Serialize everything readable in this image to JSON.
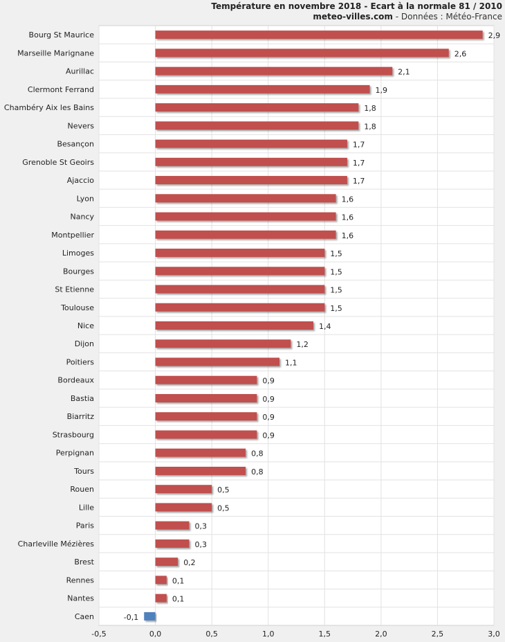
{
  "header": {
    "title": "Température en novembre 2018 - Ecart à la normale 81 / 2010",
    "site": "meteo-villes.com",
    "source": " - Données : Météo-France"
  },
  "chart_data": {
    "type": "bar",
    "orientation": "horizontal",
    "categories": [
      "Bourg St Maurice",
      "Marseille Marignane",
      "Aurillac",
      "Clermont Ferrand",
      "Chambéry Aix les Bains",
      "Nevers",
      "Besançon",
      "Grenoble St Geoirs",
      "Ajaccio",
      "Lyon",
      "Nancy",
      "Montpellier",
      "Limoges",
      "Bourges",
      "St Etienne",
      "Toulouse",
      "Nice",
      "Dijon",
      "Poitiers",
      "Bordeaux",
      "Bastia",
      "Biarritz",
      "Strasbourg",
      "Perpignan",
      "Tours",
      "Rouen",
      "Lille",
      "Paris",
      "Charleville Mézières",
      "Brest",
      "Rennes",
      "Nantes",
      "Caen"
    ],
    "values": [
      2.9,
      2.6,
      2.1,
      1.9,
      1.8,
      1.8,
      1.7,
      1.7,
      1.7,
      1.6,
      1.6,
      1.6,
      1.5,
      1.5,
      1.5,
      1.5,
      1.4,
      1.2,
      1.1,
      0.9,
      0.9,
      0.9,
      0.9,
      0.8,
      0.8,
      0.5,
      0.5,
      0.3,
      0.3,
      0.2,
      0.1,
      0.1,
      -0.1
    ],
    "value_labels": [
      "2,9",
      "2,6",
      "2,1",
      "1,9",
      "1,8",
      "1,8",
      "1,7",
      "1,7",
      "1,7",
      "1,6",
      "1,6",
      "1,6",
      "1,5",
      "1,5",
      "1,5",
      "1,5",
      "1,4",
      "1,2",
      "1,1",
      "0,9",
      "0,9",
      "0,9",
      "0,9",
      "0,8",
      "0,8",
      "0,5",
      "0,5",
      "0,3",
      "0,3",
      "0,2",
      "0,1",
      "0,1",
      "-0,1"
    ],
    "xlim": [
      -0.5,
      3.0
    ],
    "xticks": [
      -0.5,
      0.0,
      0.5,
      1.0,
      1.5,
      2.0,
      2.5,
      3.0
    ],
    "xtick_labels": [
      "-0,5",
      "0,0",
      "0,5",
      "1,0",
      "1,5",
      "2,0",
      "2,5",
      "3,0"
    ],
    "grid": true,
    "colors": {
      "positive": "#c0504d",
      "negative": "#4f81bd",
      "plot_bg": "#ffffff",
      "grid": "#e2e2e2"
    }
  }
}
